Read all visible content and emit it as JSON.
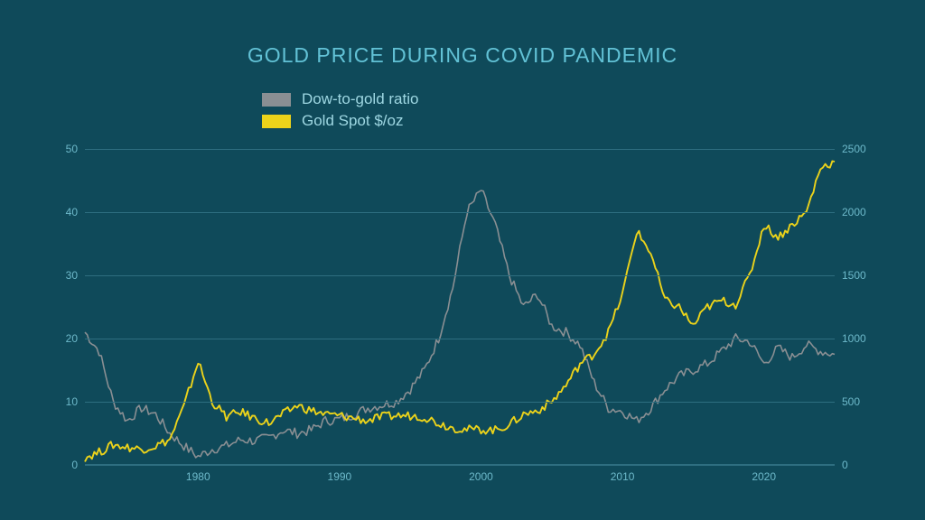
{
  "chart": {
    "type": "line",
    "title": "GOLD PRICE DURING COVID PANDEMIC",
    "title_color": "#62c2d6",
    "title_fontsize": 23,
    "background_color": "#0f4a5a",
    "grid_color": "#2e6e80",
    "tick_color": "#6db9ca",
    "tick_fontsize": 12,
    "legend": {
      "position": "top-center-left",
      "fontsize": 17,
      "label_color": "#9ed7e2",
      "items": [
        {
          "label": "Dow-to-gold ratio",
          "color": "#8a8f93"
        },
        {
          "label": "Gold Spot $/oz",
          "color": "#ecd31a"
        }
      ]
    },
    "x": {
      "min": 1972,
      "max": 2025,
      "ticks": [
        1980,
        1990,
        2000,
        2010,
        2020
      ]
    },
    "y_left": {
      "label": "Dow-to-gold ratio",
      "min": 0,
      "max": 50,
      "ticks": [
        0,
        10,
        20,
        30,
        40,
        50
      ]
    },
    "y_right": {
      "label": "Gold Spot $/oz",
      "min": 0,
      "max": 2500,
      "ticks": [
        0,
        500,
        1000,
        1500,
        2000,
        2500
      ]
    },
    "series": [
      {
        "name": "Dow-to-gold ratio",
        "axis": "left",
        "color": "#8a8f93",
        "line_width": 1.6,
        "noise": 0.8,
        "data": [
          [
            1972,
            21
          ],
          [
            1973,
            18
          ],
          [
            1974,
            10
          ],
          [
            1975,
            7
          ],
          [
            1976,
            9
          ],
          [
            1977,
            8
          ],
          [
            1978,
            5
          ],
          [
            1979,
            3
          ],
          [
            1980,
            1.3
          ],
          [
            1981,
            2.5
          ],
          [
            1982,
            3.0
          ],
          [
            1983,
            4.0
          ],
          [
            1984,
            3.8
          ],
          [
            1985,
            4.3
          ],
          [
            1986,
            5.5
          ],
          [
            1987,
            5.0
          ],
          [
            1988,
            5.5
          ],
          [
            1989,
            7.0
          ],
          [
            1990,
            7.2
          ],
          [
            1991,
            8.0
          ],
          [
            1992,
            9.0
          ],
          [
            1993,
            9.5
          ],
          [
            1994,
            10.0
          ],
          [
            1995,
            12.0
          ],
          [
            1996,
            15.0
          ],
          [
            1997,
            20.0
          ],
          [
            1998,
            28.0
          ],
          [
            1999,
            40.0
          ],
          [
            2000,
            43.5
          ],
          [
            2001,
            38.0
          ],
          [
            2002,
            30.0
          ],
          [
            2003,
            25.0
          ],
          [
            2004,
            27.0
          ],
          [
            2005,
            22.0
          ],
          [
            2006,
            21.0
          ],
          [
            2007,
            19.0
          ],
          [
            2008,
            13.0
          ],
          [
            2009,
            9.0
          ],
          [
            2010,
            8.5
          ],
          [
            2011,
            7.0
          ],
          [
            2012,
            9.0
          ],
          [
            2013,
            12.0
          ],
          [
            2014,
            14.0
          ],
          [
            2015,
            15.0
          ],
          [
            2016,
            16.0
          ],
          [
            2017,
            18.0
          ],
          [
            2018,
            20.0
          ],
          [
            2019,
            19.5
          ],
          [
            2020,
            16.0
          ],
          [
            2021,
            18.5
          ],
          [
            2022,
            17.0
          ],
          [
            2023,
            19.0
          ],
          [
            2024,
            18.0
          ],
          [
            2025,
            17.5
          ]
        ]
      },
      {
        "name": "Gold Spot $/oz",
        "axis": "right",
        "color": "#ecd31a",
        "line_width": 1.9,
        "noise": 35,
        "data": [
          [
            1972,
            60
          ],
          [
            1973,
            100
          ],
          [
            1974,
            160
          ],
          [
            1975,
            140
          ],
          [
            1976,
            125
          ],
          [
            1977,
            150
          ],
          [
            1978,
            200
          ],
          [
            1979,
            460
          ],
          [
            1980,
            820
          ],
          [
            1981,
            500
          ],
          [
            1982,
            380
          ],
          [
            1983,
            420
          ],
          [
            1984,
            370
          ],
          [
            1985,
            330
          ],
          [
            1986,
            400
          ],
          [
            1987,
            470
          ],
          [
            1988,
            430
          ],
          [
            1989,
            400
          ],
          [
            1990,
            390
          ],
          [
            1991,
            370
          ],
          [
            1992,
            350
          ],
          [
            1993,
            380
          ],
          [
            1994,
            390
          ],
          [
            1995,
            390
          ],
          [
            1996,
            380
          ],
          [
            1997,
            330
          ],
          [
            1998,
            295
          ],
          [
            1999,
            280
          ],
          [
            2000,
            280
          ],
          [
            2001,
            275
          ],
          [
            2002,
            320
          ],
          [
            2003,
            400
          ],
          [
            2004,
            430
          ],
          [
            2005,
            500
          ],
          [
            2006,
            630
          ],
          [
            2007,
            800
          ],
          [
            2008,
            880
          ],
          [
            2009,
            1050
          ],
          [
            2010,
            1350
          ],
          [
            2011,
            1850
          ],
          [
            2012,
            1680
          ],
          [
            2013,
            1300
          ],
          [
            2014,
            1250
          ],
          [
            2015,
            1100
          ],
          [
            2016,
            1250
          ],
          [
            2017,
            1300
          ],
          [
            2018,
            1270
          ],
          [
            2019,
            1500
          ],
          [
            2020,
            1900
          ],
          [
            2021,
            1800
          ],
          [
            2022,
            1900
          ],
          [
            2023,
            2000
          ],
          [
            2024,
            2350
          ],
          [
            2025,
            2400
          ]
        ]
      }
    ]
  }
}
